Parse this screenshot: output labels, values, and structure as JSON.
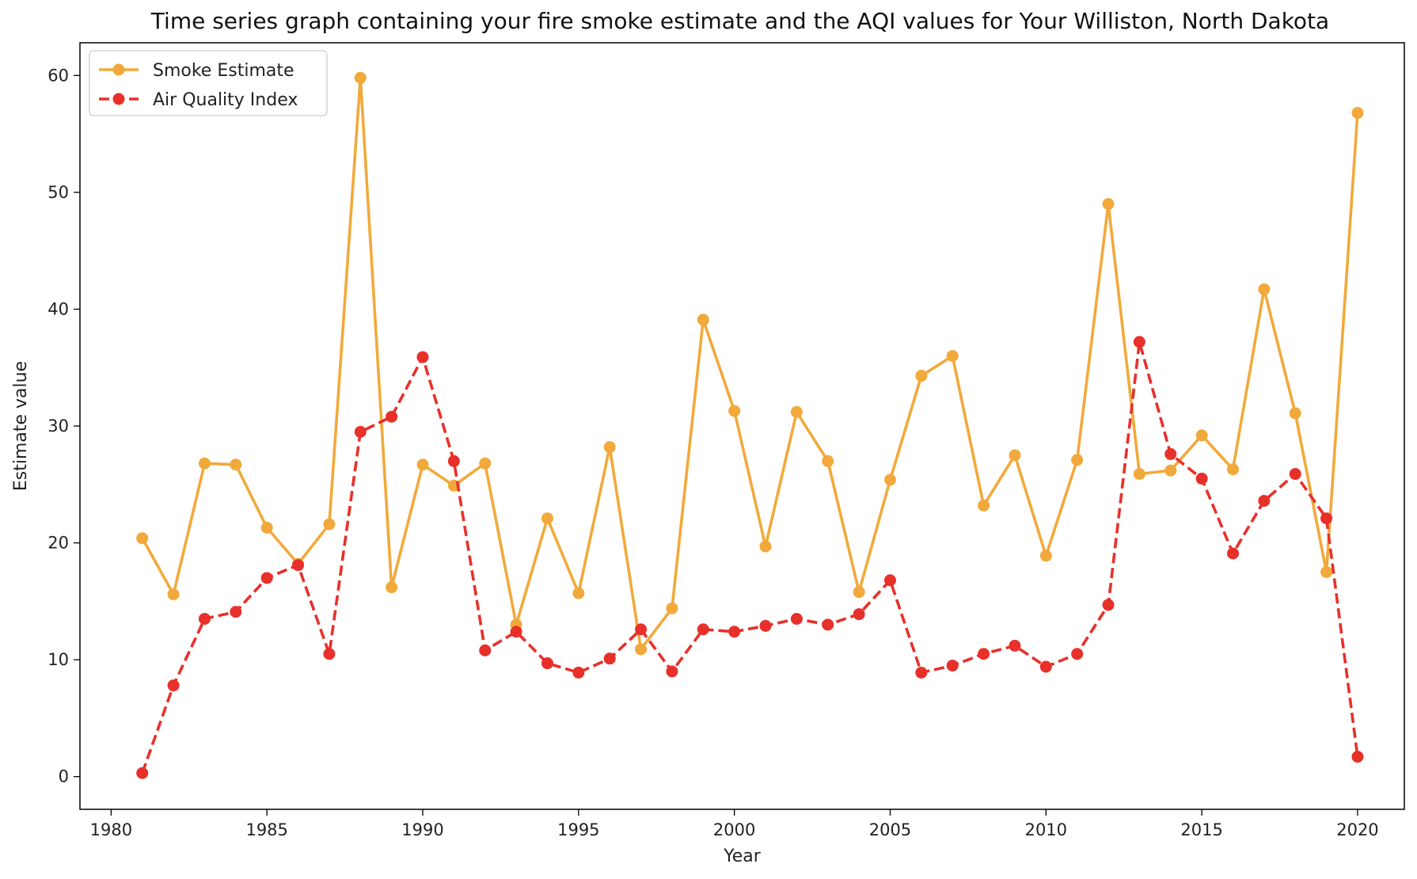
{
  "chart_data": {
    "type": "line",
    "title": "Time series graph containing your fire smoke estimate and the AQI values for Your Williston, North Dakota",
    "xlabel": "Year",
    "ylabel": "Estimate value",
    "xlim": [
      1979,
      2021.5
    ],
    "ylim": [
      -2.8,
      62.8
    ],
    "xticks": [
      1980,
      1985,
      1990,
      1995,
      2000,
      2005,
      2010,
      2015,
      2020
    ],
    "yticks": [
      0,
      10,
      20,
      30,
      40,
      50,
      60
    ],
    "grid": false,
    "legend_position": "upper left",
    "x": [
      1981,
      1982,
      1983,
      1984,
      1985,
      1986,
      1987,
      1988,
      1989,
      1990,
      1991,
      1992,
      1993,
      1994,
      1995,
      1996,
      1997,
      1998,
      1999,
      2000,
      2001,
      2002,
      2003,
      2004,
      2005,
      2006,
      2007,
      2008,
      2009,
      2010,
      2011,
      2012,
      2013,
      2014,
      2015,
      2016,
      2017,
      2018,
      2019,
      2020
    ],
    "series": [
      {
        "name": "Smoke Estimate",
        "color": "#F2A93B",
        "line_style": "solid",
        "marker": "circle",
        "values": [
          20.4,
          15.6,
          26.8,
          26.7,
          21.3,
          18.2,
          21.6,
          59.8,
          16.2,
          26.7,
          24.9,
          26.8,
          13.0,
          22.1,
          15.7,
          28.2,
          10.9,
          14.4,
          39.1,
          31.3,
          19.7,
          31.2,
          27.0,
          15.8,
          25.4,
          34.3,
          36.0,
          23.2,
          27.5,
          18.9,
          27.1,
          49.0,
          25.9,
          26.2,
          29.2,
          26.3,
          41.7,
          31.1,
          17.5,
          56.8
        ]
      },
      {
        "name": "Air Quality Index",
        "color": "#E8302A",
        "line_style": "dashed",
        "marker": "circle",
        "values": [
          0.3,
          7.8,
          13.5,
          14.1,
          17.0,
          18.1,
          10.5,
          29.5,
          30.8,
          35.9,
          27.0,
          10.8,
          12.4,
          9.7,
          8.9,
          10.1,
          12.6,
          9.0,
          12.6,
          12.4,
          12.9,
          13.5,
          13.0,
          13.9,
          16.8,
          8.9,
          9.5,
          10.5,
          11.2,
          9.4,
          10.5,
          14.7,
          37.2,
          27.6,
          25.5,
          19.1,
          23.6,
          25.9,
          22.1,
          1.7
        ]
      }
    ]
  }
}
